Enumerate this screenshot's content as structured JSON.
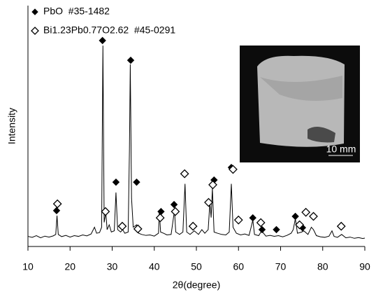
{
  "chart_data": {
    "type": "line",
    "x_label": "2θ(degree)",
    "y_label": "Intensity",
    "xlim": [
      10,
      90
    ],
    "xticks": [
      10,
      20,
      30,
      40,
      50,
      60,
      70,
      80,
      90
    ],
    "ylim": [
      0,
      100
    ],
    "color": "#000000",
    "x": [
      10,
      11,
      12,
      13,
      14,
      15,
      16,
      16.6,
      16.9,
      17.2,
      18,
      19,
      20,
      21,
      22,
      23,
      24,
      25,
      25.8,
      26.3,
      27,
      27.5,
      27.8,
      28.1,
      28.5,
      28.8,
      29.3,
      29.8,
      30.5,
      30.9,
      31.3,
      32,
      32.5,
      33,
      33.8,
      34.1,
      34.3,
      34.6,
      35,
      35.8,
      36.3,
      37,
      38,
      39,
      40,
      41,
      41.2,
      41.5,
      42.2,
      43,
      44,
      44.8,
      45.1,
      46,
      46.8,
      47.3,
      47.7,
      48.5,
      49.5,
      50.5,
      51.3,
      52,
      52.8,
      53.2,
      53.5,
      53.8,
      54.2,
      55,
      56,
      57,
      57.8,
      58.3,
      58.7,
      59.5,
      60.5,
      61.5,
      62.5,
      63,
      63.4,
      63.8,
      64.8,
      65.5,
      66.5,
      67.5,
      68.5,
      69.5,
      70.5,
      71.5,
      72.5,
      73,
      73.5,
      74,
      75,
      75.5,
      76.5,
      77.3,
      77.8,
      78.5,
      79.5,
      80.5,
      81.5,
      82.2,
      82.7,
      83.5,
      84.5,
      85.5,
      86.5,
      87.5,
      88.5,
      89.5,
      90
    ],
    "values": [
      4.2,
      3.8,
      4.5,
      3.6,
      4.3,
      3.9,
      4.4,
      5,
      12.8,
      5,
      4.1,
      4.6,
      3.9,
      4.5,
      4.2,
      4.8,
      4.4,
      5.2,
      8,
      5.5,
      5.8,
      8,
      83.4,
      10,
      14,
      7,
      9,
      6,
      6.5,
      22.4,
      7,
      6,
      7,
      5.5,
      6,
      40,
      75.6,
      20,
      8,
      9,
      5.5,
      5,
      4.6,
      4.8,
      4.3,
      5.5,
      15,
      6,
      5.5,
      4.8,
      5,
      15,
      6,
      5,
      6,
      26,
      6,
      5,
      6.5,
      5,
      7,
      5.5,
      7,
      18,
      12,
      24,
      6,
      5.5,
      5,
      4.8,
      6,
      26,
      8,
      5.5,
      4.8,
      5.2,
      4.6,
      8,
      11,
      5,
      4.5,
      6.5,
      4.3,
      4.6,
      4.2,
      4.5,
      4,
      4.6,
      5.5,
      7,
      11.5,
      5.5,
      6,
      6.5,
      5,
      8,
      7,
      4.5,
      4,
      3.8,
      4.3,
      6.5,
      4.2,
      3.8,
      5,
      3.6,
      3.9,
      3.4,
      3.7,
      3.3,
      3.5
    ],
    "series": [
      {
        "name": "PbO  #35-1482",
        "marker": "filled",
        "color": "#000000",
        "x": [
          16.8,
          27.7,
          34.4,
          30.9,
          35.8,
          41.6,
          44.7,
          54.2,
          58.3,
          63.4,
          65.6,
          69.0,
          73.5,
          75.2
        ],
        "values": [
          14.9,
          85.5,
          77.3,
          26.7,
          26.7,
          14.5,
          17.4,
          27.6,
          32.8,
          11.9,
          7.0,
          7.0,
          12.5,
          7.8
        ]
      },
      {
        "name": "Bi1.23Pb0.77O2.62  #45-0291",
        "marker": "open",
        "color": "#000000",
        "x": [
          17.0,
          28.4,
          32.4,
          36.1,
          41.4,
          45.0,
          47.2,
          49.2,
          52.9,
          53.9,
          58.7,
          60.0,
          65.3,
          74.5,
          76.0,
          77.8,
          84.4
        ],
        "values": [
          17.7,
          14.5,
          8.4,
          7.3,
          11.9,
          14.5,
          30.2,
          8.4,
          18.3,
          25.6,
          32.0,
          11.0,
          9.9,
          9.0,
          14.2,
          12.5,
          8.4
        ]
      }
    ],
    "inset": {
      "scale_label": "10 mm"
    }
  }
}
